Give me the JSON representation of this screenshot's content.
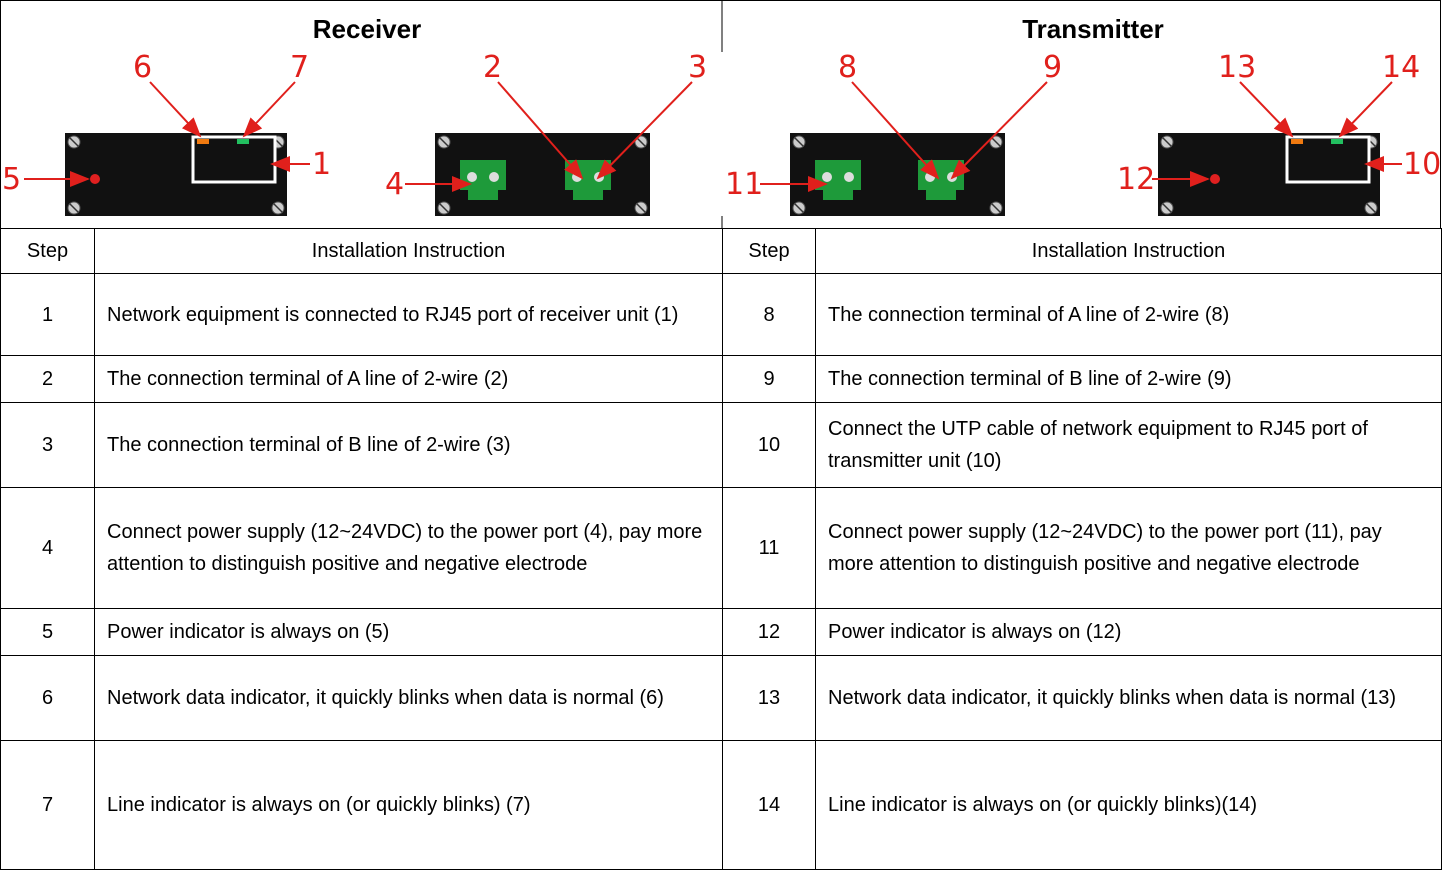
{
  "receiver": {
    "title": "Receiver",
    "callouts": [
      "6",
      "7",
      "2",
      "3",
      "5",
      "1",
      "4"
    ]
  },
  "transmitter": {
    "title": "Transmitter",
    "callouts": [
      "8",
      "9",
      "13",
      "14",
      "11",
      "12",
      "10"
    ]
  },
  "table": {
    "header": [
      "Step",
      "Installation Instruction",
      "Step",
      "Installation Instruction"
    ],
    "rows": [
      [
        "1",
        "Network equipment is connected to RJ45 port of receiver unit (1)",
        "8",
        "The connection terminal of A line of 2-wire (8)"
      ],
      [
        "2",
        "The connection terminal of A line of 2-wire (2)",
        "9",
        "The connection terminal of B line of 2-wire (9)"
      ],
      [
        "3",
        "The connection terminal of B line of 2-wire (3)",
        "10",
        "Connect the UTP cable of network equipment to RJ45 port of transmitter unit (10)"
      ],
      [
        "4",
        "Connect power supply (12~24VDC) to the power port (4), pay more attention to distinguish positive and negative electrode",
        "11",
        "Connect power supply (12~24VDC) to the power port (11), pay more attention to distinguish positive and negative electrode"
      ],
      [
        "5",
        "Power indicator is always on (5)",
        "12",
        "Power indicator is always on (12)"
      ],
      [
        "6",
        "Network data indicator, it quickly blinks when data is normal (6)",
        "13",
        "Network data indicator, it quickly blinks when data is normal (13)"
      ],
      [
        "7",
        "Line indicator is always on (or quickly blinks) (7)",
        "14",
        "Line indicator is always on (or quickly blinks)(14)"
      ]
    ]
  }
}
